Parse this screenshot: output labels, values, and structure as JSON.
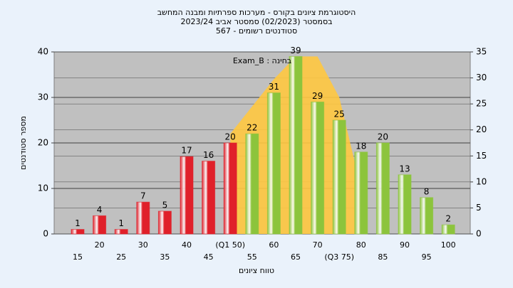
{
  "chart_data": {
    "type": "bar",
    "title": [
      "היסטוגרמת ציונים בקורס - מערכות ספרתיות ומבנה המחשב",
      "בסמסטר  (02/2023)  סמסטר אביב 2023/24",
      "סטודנטים רשומים - 567"
    ],
    "annotation": "בחינה : Exam_B",
    "x_label": "טווח ציונים",
    "y_label": "מספר סטודנטים",
    "categories": [
      "15",
      "20",
      "25",
      "30",
      "35",
      "40",
      "45",
      "(Q1 50)",
      "55",
      "60",
      "65",
      "70",
      "(Q3 75)",
      "80",
      "85",
      "90",
      "95",
      "100"
    ],
    "values": [
      1,
      4,
      1,
      7,
      5,
      17,
      16,
      20,
      22,
      31,
      39,
      29,
      25,
      18,
      20,
      13,
      8,
      2
    ],
    "colors": [
      "#e0202a",
      "#e0202a",
      "#e0202a",
      "#e0202a",
      "#e0202a",
      "#e0202a",
      "#e0202a",
      "#e0202a",
      "#8cc43c",
      "#8cc43c",
      "#8cc43c",
      "#8cc43c",
      "#8cc43c",
      "#8cc43c",
      "#8cc43c",
      "#8cc43c",
      "#8cc43c",
      "#8cc43c"
    ],
    "area": {
      "color": "#ffc840",
      "values": [
        null,
        null,
        null,
        null,
        null,
        null,
        null,
        22,
        28,
        34,
        39,
        39,
        30,
        10,
        null,
        null,
        null,
        null
      ]
    },
    "ylim": [
      0,
      40
    ],
    "yticks": [
      0,
      10,
      20,
      30,
      40
    ],
    "y2lim": [
      0,
      35
    ],
    "y2ticks": [
      0,
      5,
      10,
      15,
      20,
      25,
      30,
      35
    ],
    "grid": true
  }
}
